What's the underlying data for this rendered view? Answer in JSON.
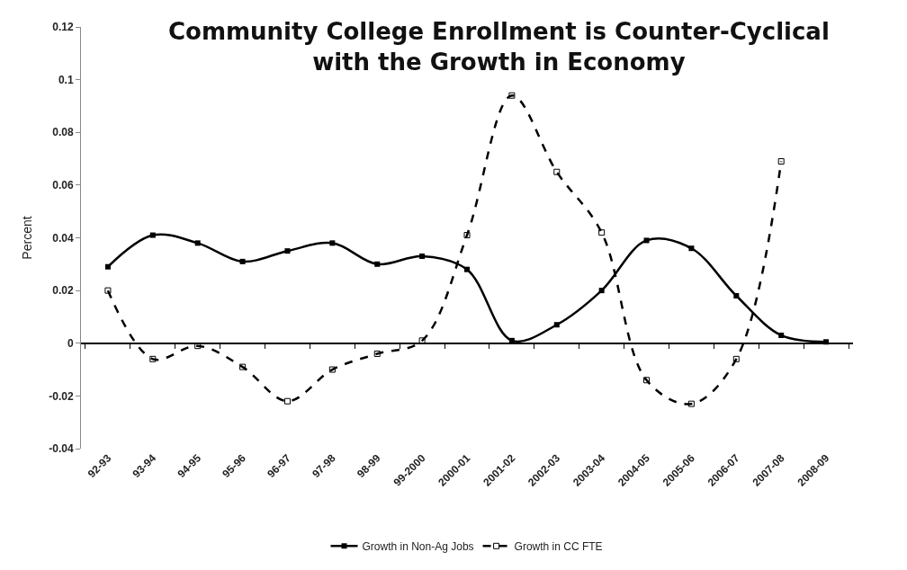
{
  "chart_data": {
    "type": "line",
    "title": "Community College Enrollment is Counter-Cyclical\nwith the Growth in Economy",
    "ylabel": "Percent",
    "categories": [
      "92-93",
      "93-94",
      "94-95",
      "95-96",
      "96-97",
      "97-98",
      "98-99",
      "99-2000",
      "2000-01",
      "2001-02",
      "2002-03",
      "2003-04",
      "2004-05",
      "2005-06",
      "2006-07",
      "2007-08",
      "2008-09"
    ],
    "series": [
      {
        "name": "Growth in Non-Ag Jobs",
        "color": "#000000",
        "line_style": "solid",
        "marker": "square",
        "values": [
          0.029,
          0.041,
          0.038,
          0.031,
          0.035,
          0.038,
          0.03,
          0.033,
          0.028,
          0.001,
          0.007,
          0.02,
          0.039,
          0.036,
          0.018,
          0.003,
          0.0005
        ]
      },
      {
        "name": "Growth in CC FTE",
        "color": "#000000",
        "line_style": "dashed",
        "marker": "square",
        "values": [
          0.02,
          -0.006,
          -0.001,
          -0.009,
          -0.022,
          -0.01,
          -0.004,
          0.001,
          0.041,
          0.094,
          0.065,
          0.042,
          -0.014,
          -0.023,
          -0.006,
          0.069,
          null
        ]
      }
    ],
    "ylim": [
      -0.04,
      0.12
    ],
    "yticks": [
      {
        "value": -0.04,
        "label": "-0.04"
      },
      {
        "value": -0.02,
        "label": "-0.02"
      },
      0,
      {
        "value": 0.02,
        "label": "0.02"
      },
      {
        "value": 0.04,
        "label": "0.04"
      },
      {
        "value": 0.06,
        "label": "0.06"
      },
      {
        "value": 0.08,
        "label": "0.08"
      },
      {
        "value": 0.1,
        "label": "0.1"
      },
      {
        "value": 0.12,
        "label": "0.12"
      }
    ],
    "legend": "bottom"
  }
}
